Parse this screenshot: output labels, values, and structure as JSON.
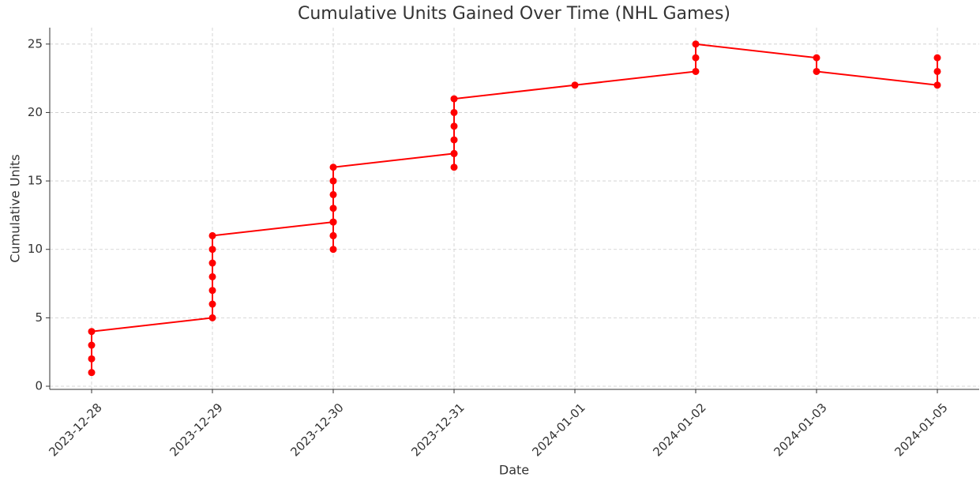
{
  "chart_data": {
    "type": "line",
    "title": "Cumulative Units Gained Over Time (NHL Games)",
    "xlabel": "Date",
    "ylabel": "Cumulative Units",
    "categories": [
      "2023-12-28",
      "2023-12-29",
      "2023-12-30",
      "2023-12-31",
      "2024-01-01",
      "2024-01-02",
      "2024-01-03",
      "2024-01-05"
    ],
    "series": [
      {
        "color": "#ff0000",
        "x": [
          "2023-12-28",
          "2023-12-28",
          "2023-12-28",
          "2023-12-28",
          "2023-12-29",
          "2023-12-29",
          "2023-12-29",
          "2023-12-29",
          "2023-12-29",
          "2023-12-29",
          "2023-12-29",
          "2023-12-30",
          "2023-12-30",
          "2023-12-30",
          "2023-12-30",
          "2023-12-30",
          "2023-12-30",
          "2023-12-30",
          "2023-12-30",
          "2023-12-30",
          "2023-12-31",
          "2023-12-31",
          "2023-12-31",
          "2023-12-31",
          "2023-12-31",
          "2023-12-31",
          "2023-12-31",
          "2024-01-01",
          "2024-01-02",
          "2024-01-02",
          "2024-01-02",
          "2024-01-03",
          "2024-01-03",
          "2024-01-05",
          "2024-01-05",
          "2024-01-05"
        ],
        "values": [
          1,
          2,
          3,
          4,
          5,
          6,
          7,
          8,
          9,
          10,
          11,
          12,
          11,
          10,
          11,
          12,
          13,
          14,
          15,
          16,
          17,
          16,
          17,
          18,
          19,
          20,
          21,
          22,
          23,
          24,
          25,
          24,
          23,
          22,
          23,
          24
        ]
      }
    ],
    "ylim": [
      -0.23,
      26.2
    ],
    "yticks": [
      0,
      5,
      10,
      15,
      20,
      25
    ],
    "grid": true
  }
}
